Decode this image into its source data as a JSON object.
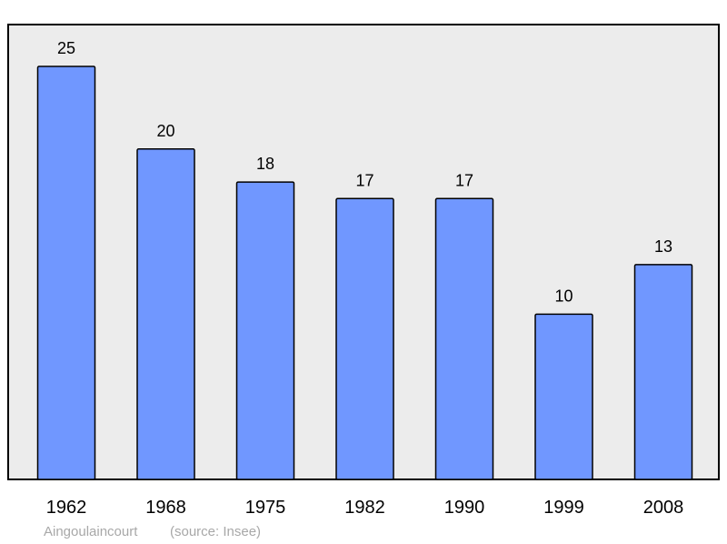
{
  "chart_data": {
    "type": "bar",
    "categories": [
      "1962",
      "1968",
      "1975",
      "1982",
      "1990",
      "1999",
      "2008"
    ],
    "values": [
      25,
      20,
      18,
      17,
      17,
      10,
      13
    ],
    "data_labels": [
      "25",
      "20",
      "18",
      "17",
      "17",
      "10",
      "13"
    ],
    "title": "",
    "xlabel": "",
    "ylabel": "",
    "ylim": [
      0,
      25
    ],
    "grid": false,
    "legend": "none"
  },
  "caption": {
    "place": "Aingoulaincourt",
    "source": "(source: Insee)"
  },
  "colors": {
    "plot_background": "#ececec",
    "bar_fill": "#7097ff",
    "bar_stroke": "#000000",
    "frame": "#000000",
    "caption_text": "#a8a8a8"
  }
}
